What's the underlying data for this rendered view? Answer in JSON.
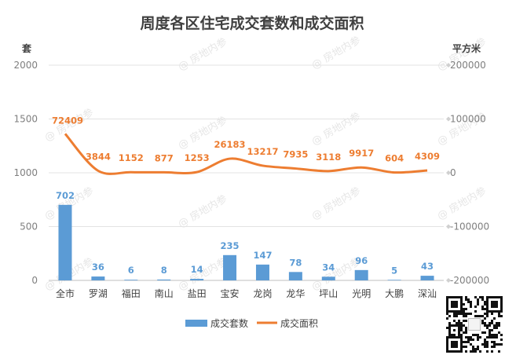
{
  "chart_data": {
    "type": "bar",
    "title": "周度各区住宅成交套数和成交面积",
    "categories": [
      "全市",
      "罗湖",
      "福田",
      "南山",
      "盐田",
      "宝安",
      "龙岗",
      "龙华",
      "坪山",
      "光明",
      "大鹏",
      "深汕"
    ],
    "left_axis": {
      "unit": "套",
      "min": 0,
      "max": 2000,
      "ticks": [
        0,
        500,
        1000,
        1500,
        2000
      ]
    },
    "right_axis": {
      "unit": "平方米",
      "min": -200000,
      "max": 200000,
      "ticks": [
        -200000,
        -100000,
        0,
        100000,
        200000
      ]
    },
    "series": [
      {
        "name": "成交套数",
        "type": "bar",
        "axis": "left",
        "color": "#5b9bd5",
        "values": [
          702,
          36,
          6,
          8,
          14,
          235,
          147,
          78,
          34,
          96,
          5,
          43
        ]
      },
      {
        "name": "成交面积",
        "type": "line",
        "axis": "right",
        "color": "#ed7d31",
        "values": [
          72409,
          3844,
          1152,
          877,
          1253,
          26183,
          13217,
          7935,
          3118,
          9917,
          604,
          4309
        ]
      }
    ],
    "legend": "bottom",
    "grid": true
  },
  "watermark_text": "@ 房地内参"
}
